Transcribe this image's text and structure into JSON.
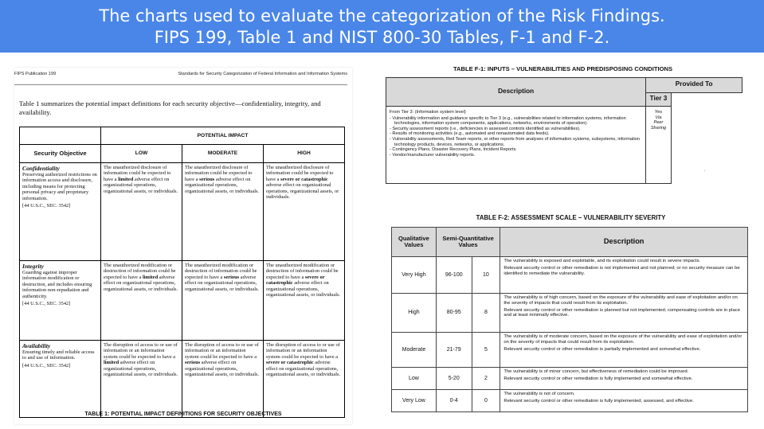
{
  "banner": {
    "line1": "The charts used to evaluate the categorization of the Risk Findings.",
    "line2": "FIPS 199, Table 1 and NIST 800-30 Tables, F-1 and F-2."
  },
  "fips": {
    "header_left": "FIPS Publication 199",
    "header_right": "Standards for Security Categorization of Federal Information and Information Systems",
    "intro": "Table 1 summarizes the potential impact definitions for each security objective—confidentiality, integrity, and availability.",
    "potential_impact": "POTENTIAL IMPACT",
    "col_security_objective": "Security Objective",
    "col_low": "LOW",
    "col_moderate": "MODERATE",
    "col_high": "HIGH",
    "rows": [
      {
        "objective": "Confidentiality",
        "definition": "Preserving authorized restrictions on information access and disclosure, including means for protecting personal privacy and proprietary information.",
        "ref": "[44 U.S.C., SEC. 3542]",
        "low_a": "The unauthorized disclosure of information could be expected to have a",
        "low_b": "limited",
        "low_c": "adverse effect on organizational operations, organizational assets, or individuals.",
        "mod_a": "The unauthorized disclosure of information could be expected to have a",
        "mod_b": "serious",
        "mod_c": "adverse effect on organizational operations, organizational assets, or individuals.",
        "high_a": "The unauthorized disclosure of information could be expected to have a",
        "high_b": "severe or catastrophic",
        "high_c": "adverse effect on organizational operations, organizational assets, or individuals."
      },
      {
        "objective": "Integrity",
        "definition": "Guarding against improper information modification or destruction, and includes ensuring information non-repudiation and authenticity.",
        "ref": "[44 U.S.C., SEC. 3542]",
        "low_a": "The unauthorized modification or destruction of information could be expected to have a",
        "low_b": "limited",
        "low_c": "adverse effect on organizational operations, organizational assets, or individuals.",
        "mod_a": "The unauthorized modification or destruction of information could be expected to have a",
        "mod_b": "serious",
        "mod_c": "adverse effect on organizational operations, organizational assets, or individuals.",
        "high_a": "The unauthorized modification or destruction of information could be expected to have a",
        "high_b": "severe or catastrophic",
        "high_c": "adverse effect on organizational operations, organizational assets, or individuals."
      },
      {
        "objective": "Availability",
        "definition": "Ensuring timely and reliable access to and use of information.",
        "ref": "[44 U.S.C., SEC. 3542]",
        "low_a": "The disruption of access to or use of information or an information system could be expected to have a",
        "low_b": "limited",
        "low_c": "adverse effect on organizational operations, organizational assets, or individuals.",
        "mod_a": "The disruption of access to or use of information or an information system could be expected to have a",
        "mod_b": "serious",
        "mod_c": "adverse effect on organizational operations, organizational assets, or individuals.",
        "high_a": "The disruption of access to or use of information or an information system could be expected to have a",
        "high_b": "severe or catastrophic",
        "high_c": "adverse effect on organizational operations, organizational assets, or individuals."
      }
    ],
    "caption": "TABLE 1:  POTENTIAL IMPACT DEFINITIONS FOR SECURITY OBJECTIVES"
  },
  "f1": {
    "title": "TABLE F-1: INPUTS – VULNERABILITIES AND PREDISPOSING CONDITIONS",
    "col_description": "Description",
    "col_provided_to": "Provided To",
    "col_tier3": "Tier 3",
    "from_tier": "From Tier 3: (Information system level)",
    "items": [
      "- Vulnerability information and guidance specific to Tier 3 (e.g., vulnerabilities related to information systems, information technologies, information system components, applications, networks, environments of operation).",
      "- Security assessment reports (i.e., deficiencies in assessed controls identified as vulnerabilities).",
      "- Results of monitoring activities (e.g., automated and nonautomated data feeds).",
      "- Vulnerability assessments, Red Team reports, or other reports from analyses of information systems, subsystems, information technology products, devices, networks, or applications.",
      "- Contingency Plans, Disaster Recovery Plans, Incident Reports.",
      "- Vendor/manufacturer vulnerability reports."
    ],
    "yes": "Yes",
    "via": "Via",
    "peer": "Peer",
    "sharing": "Sharing",
    "stray_dot": "."
  },
  "f2": {
    "title": "TABLE F-2: ASSESSMENT SCALE – VULNERABILITY SEVERITY",
    "col_qualitative": "Qualitative Values",
    "col_semi": "Semi-Quantitative Values",
    "col_description": "Description",
    "rows": [
      {
        "q": "Very High",
        "range": "96-100",
        "score": "10",
        "d1": "The vulnerability is exposed and exploitable, and its exploitation could result in severe impacts.",
        "d2": "Relevant security control or other remediation is not implemented and not planned; or no security measure can be identified to remediate the vulnerability."
      },
      {
        "q": "High",
        "range": "80-95",
        "score": "8",
        "d1": "The vulnerability is of high concern, based on the exposure of the vulnerability and ease of exploitation and/or on the severity of impacts that could result from its exploitation.",
        "d2": "Relevant security control or other remediation is planned but not implemented; compensating controls are in place and at least minimally effective."
      },
      {
        "q": "Moderate",
        "range": "21-79",
        "score": "5",
        "d1": "The vulnerability is of moderate concern, based on the exposure of the vulnerability and ease of exploitation and/or on the severity of impacts that could result from its exploitation.",
        "d2": "Relevant security control or other remediation is partially implemented and somewhat effective."
      },
      {
        "q": "Low",
        "range": "5-20",
        "score": "2",
        "d1": "The vulnerability is of minor concern, but effectiveness of remediation could be improved.",
        "d2": "Relevant security control or other remediation is fully implemented and somewhat effective."
      },
      {
        "q": "Very Low",
        "range": "0-4",
        "score": "0",
        "d1": "The vulnerability is not of concern.",
        "d2": "Relevant security control or other remediation is fully implemented, assessed, and effective."
      }
    ]
  }
}
